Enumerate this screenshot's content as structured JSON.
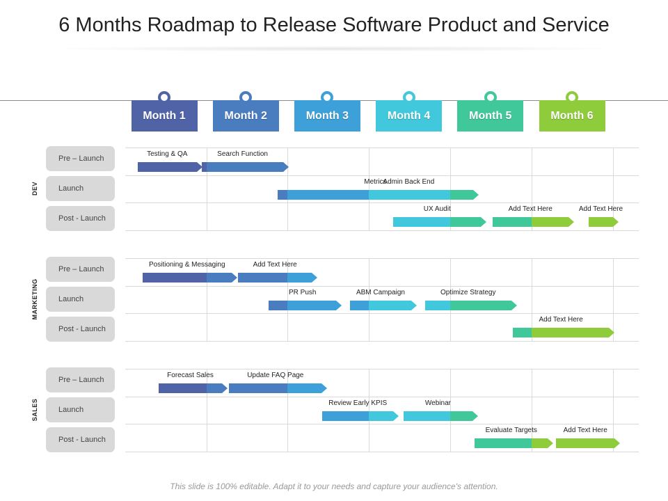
{
  "title": "6 Months Roadmap to Release Software Product and Service",
  "footer": "This slide is 100% editable. Adapt it to your needs and capture your audience's attention.",
  "colors": {
    "m1": "#5063a7",
    "m2": "#4a7cc0",
    "m3": "#3ea0d8",
    "m4": "#42c8dc",
    "m5": "#41c89a",
    "m6": "#8fcc3c",
    "dot_border": "#333333"
  },
  "months": [
    {
      "label": "Month 1",
      "color": "#5063a7"
    },
    {
      "label": "Month 2",
      "color": "#4a7cc0"
    },
    {
      "label": "Month 3",
      "color": "#3ea0d8"
    },
    {
      "label": "Month 4",
      "color": "#42c8dc"
    },
    {
      "label": "Month 5",
      "color": "#41c89a"
    },
    {
      "label": "Month 6",
      "color": "#8fcc3c"
    }
  ],
  "sections": [
    {
      "name": "DEV",
      "rows": [
        "Pre – Launch",
        "Launch",
        "Post - Launch"
      ]
    },
    {
      "name": "MARKETING",
      "rows": [
        "Pre – Launch",
        "Launch",
        "Post - Launch"
      ]
    },
    {
      "name": "SALES",
      "rows": [
        "Pre – Launch",
        "Launch",
        "Post - Launch"
      ]
    }
  ],
  "tasks": [
    {
      "label": "Testing & QA",
      "section": 0,
      "row": 0,
      "start": 0.15,
      "end": 0.88
    },
    {
      "label": "Search Function",
      "section": 0,
      "row": 0,
      "start": 0.94,
      "end": 1.95
    },
    {
      "label": "Metrics",
      "section": 0,
      "row": 1,
      "start": 1.88,
      "end": 4.28
    },
    {
      "label": "Admin Back End",
      "section": 0,
      "row": 1,
      "start": 2.7,
      "end": 4.28,
      "label_only": true
    },
    {
      "label": "UX Audit",
      "section": 0,
      "row": 2,
      "start": 3.3,
      "end": 4.38
    },
    {
      "label": "Add Text Here",
      "section": 0,
      "row": 2,
      "start": 4.52,
      "end": 5.45
    },
    {
      "label": "Add Text Here",
      "section": 0,
      "row": 2,
      "start": 5.7,
      "end": 6.0
    },
    {
      "label": "Positioning & Messaging",
      "section": 1,
      "row": 0,
      "start": 0.21,
      "end": 1.31
    },
    {
      "label": "Add Text Here",
      "section": 1,
      "row": 0,
      "start": 1.39,
      "end": 2.3
    },
    {
      "label": "PR Push",
      "section": 1,
      "row": 1,
      "start": 1.77,
      "end": 2.6
    },
    {
      "label": "ABM Campaign",
      "section": 1,
      "row": 1,
      "start": 2.77,
      "end": 3.52
    },
    {
      "label": "Optimize Strategy",
      "section": 1,
      "row": 1,
      "start": 3.69,
      "end": 4.75
    },
    {
      "label": "Add Text Here",
      "section": 1,
      "row": 2,
      "start": 4.77,
      "end": 5.95
    },
    {
      "label": "Forecast Sales",
      "section": 2,
      "row": 0,
      "start": 0.41,
      "end": 1.19
    },
    {
      "label": "Update FAQ Page",
      "section": 2,
      "row": 0,
      "start": 1.28,
      "end": 2.42
    },
    {
      "label": "Review Early KPIS",
      "section": 2,
      "row": 1,
      "start": 2.43,
      "end": 3.3
    },
    {
      "label": "Webinar",
      "section": 2,
      "row": 1,
      "start": 3.43,
      "end": 4.27
    },
    {
      "label": "Evaluate Targets",
      "section": 2,
      "row": 2,
      "start": 4.3,
      "end": 5.2
    },
    {
      "label": "Add Text Here",
      "section": 2,
      "row": 2,
      "start": 5.3,
      "end": 6.02
    }
  ]
}
